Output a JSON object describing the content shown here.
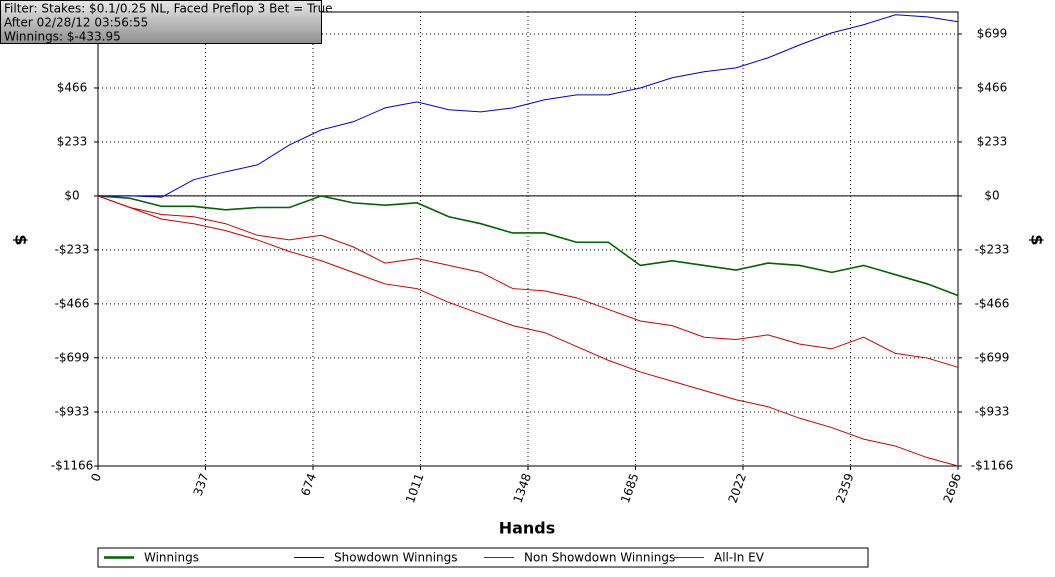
{
  "filter": [
    "Filter: Stakes: $0.1/0.25 NL, Faced Preflop 3 Bet = True",
    "After 02/28/12 03:56:55",
    "Winnings: $-433.95"
  ],
  "chart_data": {
    "type": "line",
    "xlabel": "Hands",
    "ylabel": "$",
    "y2label": "$",
    "x": [
      0,
      100,
      200,
      300,
      400,
      500,
      600,
      700,
      800,
      900,
      1000,
      1100,
      1200,
      1300,
      1400,
      1500,
      1600,
      1700,
      1800,
      1900,
      2000,
      2100,
      2200,
      2300,
      2400,
      2500,
      2600,
      2696
    ],
    "series": [
      {
        "name": "Winnings",
        "color": "#006400",
        "values": [
          0,
          -10,
          -45,
          -45,
          -60,
          -50,
          -50,
          0,
          -30,
          -40,
          -30,
          -90,
          -120,
          -160,
          -160,
          -200,
          -200,
          -300,
          -280,
          -300,
          -320,
          -290,
          -300,
          -330,
          -300,
          -340,
          -380,
          -430
        ]
      },
      {
        "name": "Showdown Winnings",
        "color": "#0000cc",
        "values": [
          0,
          0,
          -5,
          70,
          104,
          134,
          220,
          285,
          320,
          380,
          406,
          372,
          363,
          380,
          415,
          436,
          436,
          466,
          510,
          536,
          553,
          596,
          652,
          704,
          739,
          782,
          773,
          752
        ]
      },
      {
        "name": "Non Showdown Winnings",
        "color": "#cc0000",
        "values": [
          0,
          -50,
          -80,
          -90,
          -120,
          -170,
          -190,
          -170,
          -220,
          -290,
          -270,
          -300,
          -330,
          -400,
          -410,
          -440,
          -490,
          -540,
          -560,
          -610,
          -620,
          -600,
          -640,
          -660,
          -610,
          -680,
          -700,
          -740
        ]
      },
      {
        "name": "All-In EV",
        "color": "#cc0000",
        "values": [
          0,
          -50,
          -100,
          -120,
          -150,
          -190,
          -240,
          -280,
          -330,
          -380,
          -400,
          -460,
          -510,
          -560,
          -590,
          -650,
          -710,
          -760,
          -800,
          -840,
          -880,
          -910,
          -960,
          -1000,
          -1050,
          -1080,
          -1130,
          -1166
        ]
      }
    ],
    "xlim": [
      0,
      2696
    ],
    "xticks": [
      0,
      337,
      674,
      1011,
      1348,
      1685,
      2022,
      2359,
      2696
    ],
    "ylim": [
      -1166,
      794
    ],
    "yticks": [
      {
        "value": -1166,
        "label": "-$1166"
      },
      {
        "value": -933,
        "label": "-$933"
      },
      {
        "value": -699,
        "label": "-$699"
      },
      {
        "value": -466,
        "label": "-$466"
      },
      {
        "value": -233,
        "label": "-$233"
      },
      {
        "value": 0,
        "label": "$0"
      },
      {
        "value": 233,
        "label": "$233"
      },
      {
        "value": 466,
        "label": "$466"
      },
      {
        "value": 699,
        "label": "$699"
      }
    ],
    "y2lim": [
      -1166,
      794
    ],
    "y2ticks": [
      {
        "value": -1166,
        "label": "-$1166"
      },
      {
        "value": -933,
        "label": "-$933"
      },
      {
        "value": -699,
        "label": "-$699"
      },
      {
        "value": -466,
        "label": "-$466"
      },
      {
        "value": -233,
        "label": "-$233"
      },
      {
        "value": 0,
        "label": "$0"
      },
      {
        "value": 233,
        "label": "$233"
      },
      {
        "value": 466,
        "label": "$466"
      },
      {
        "value": 699,
        "label": "$699"
      }
    ],
    "grid": true
  }
}
